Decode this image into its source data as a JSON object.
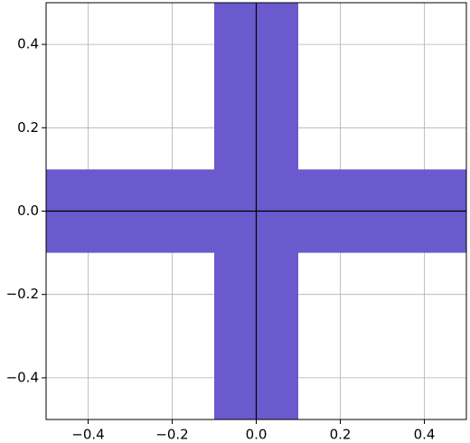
{
  "chart_data": {
    "type": "polygon",
    "series": [
      {
        "color": "#6a5acd",
        "x": [
          -0.1,
          0.1,
          0.1,
          0.5,
          0.5,
          0.1,
          0.1,
          -0.1,
          -0.1,
          -0.5,
          -0.5,
          -0.1
        ],
        "values": [
          0.5,
          0.5,
          0.1,
          0.1,
          -0.1,
          -0.1,
          -0.5,
          -0.5,
          -0.1,
          -0.1,
          0.1,
          0.1
        ]
      }
    ],
    "xlim": [
      -0.5,
      0.5
    ],
    "ylim": [
      -0.5,
      0.5
    ],
    "xticks": [
      {
        "value": -0.4,
        "label": "−0.4"
      },
      {
        "value": -0.2,
        "label": "−0.2"
      },
      {
        "value": 0,
        "label": "0.0"
      },
      0.2,
      0.4
    ],
    "yticks": [
      {
        "value": -0.4,
        "label": "−0.4"
      },
      {
        "value": -0.2,
        "label": "−0.2"
      },
      {
        "value": 0,
        "label": "0.0"
      },
      0.2,
      0.4
    ],
    "hlines": [
      0
    ],
    "vlines": [
      0
    ],
    "grid": true
  }
}
